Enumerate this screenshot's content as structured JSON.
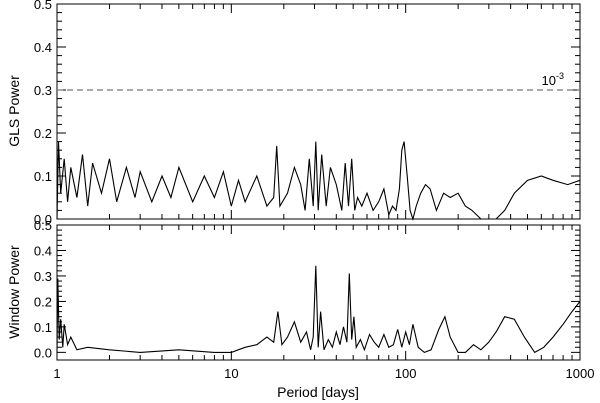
{
  "chart_data": [
    {
      "type": "line",
      "panel": "top",
      "xlabel": "",
      "ylabel": "GLS Power",
      "xscale": "log",
      "xlim": [
        1,
        1000
      ],
      "ylim": [
        0,
        0.5
      ],
      "yticks": [
        "0.0",
        "0.1",
        "0.2",
        "0.3",
        "0.4",
        "0.5"
      ],
      "grid": false,
      "threshold": {
        "value": 0.3,
        "style": "dashed",
        "label_base": "10",
        "label_exp": "-3"
      },
      "series": [
        {
          "name": "",
          "x": [
            1.0,
            1.02,
            1.05,
            1.1,
            1.15,
            1.2,
            1.3,
            1.4,
            1.5,
            1.6,
            1.8,
            2.0,
            2.2,
            2.5,
            2.8,
            3.0,
            3.5,
            4.0,
            4.5,
            5.0,
            6.0,
            7.0,
            8.0,
            9.0,
            10.0,
            11.0,
            12.0,
            14.0,
            16.0,
            17.5,
            18.2,
            19.0,
            21.0,
            23.0,
            25.0,
            26.5,
            28.0,
            29.5,
            30.5,
            31.5,
            33.0,
            35.0,
            37.0,
            40.0,
            43.0,
            45.0,
            47.0,
            49.0,
            51.0,
            53.0,
            56.0,
            60.0,
            65.0,
            70.0,
            75.0,
            80.0,
            84.0,
            88.0,
            92.0,
            95.0,
            98.0,
            102.0,
            106.0,
            110.0,
            115.0,
            122.0,
            130.0,
            138.0,
            150.0,
            165.0,
            180.0,
            200.0,
            220.0,
            240.0,
            270.0,
            300.0,
            330.0,
            370.0,
            420.0,
            500.0,
            600.0,
            700.0,
            850.0,
            1000.0
          ],
          "y": [
            0.0,
            0.18,
            0.06,
            0.14,
            0.04,
            0.12,
            0.05,
            0.15,
            0.03,
            0.13,
            0.06,
            0.14,
            0.04,
            0.12,
            0.05,
            0.11,
            0.04,
            0.1,
            0.05,
            0.12,
            0.04,
            0.1,
            0.05,
            0.11,
            0.03,
            0.09,
            0.04,
            0.1,
            0.03,
            0.05,
            0.17,
            0.03,
            0.06,
            0.12,
            0.08,
            0.02,
            0.14,
            0.03,
            0.18,
            0.02,
            0.15,
            0.03,
            0.12,
            0.08,
            0.02,
            0.13,
            0.03,
            0.14,
            0.02,
            0.05,
            0.03,
            0.06,
            0.02,
            0.04,
            0.07,
            0.01,
            0.03,
            0.02,
            0.07,
            0.16,
            0.18,
            0.1,
            0.02,
            0.0,
            0.03,
            0.06,
            0.08,
            0.07,
            0.02,
            0.06,
            0.05,
            0.06,
            0.03,
            0.02,
            0.0,
            0.0,
            0.0,
            0.02,
            0.06,
            0.09,
            0.1,
            0.09,
            0.08,
            0.09
          ]
        }
      ]
    },
    {
      "type": "line",
      "panel": "bottom",
      "xlabel": "Period [days]",
      "ylabel": "Window Power",
      "xscale": "log",
      "xlim": [
        1,
        1000
      ],
      "ylim": [
        -0.03,
        0.5
      ],
      "xticks": [
        "1",
        "10",
        "100",
        "1000"
      ],
      "yticks": [
        "0.0",
        "0.1",
        "0.2",
        "0.3",
        "0.4",
        "0.5"
      ],
      "grid": false,
      "series": [
        {
          "name": "",
          "x": [
            1.0,
            1.01,
            1.03,
            1.05,
            1.08,
            1.1,
            1.15,
            1.2,
            1.3,
            1.5,
            2.0,
            3.0,
            5.0,
            8.0,
            10.0,
            12.0,
            14.0,
            16.0,
            17.5,
            18.5,
            19.5,
            21.0,
            23.0,
            25.0,
            27.0,
            28.5,
            29.5,
            30.5,
            31.5,
            32.5,
            34.0,
            36.0,
            38.0,
            40.0,
            42.0,
            44.0,
            46.0,
            47.5,
            49.0,
            50.5,
            52.0,
            55.0,
            58.0,
            62.0,
            66.0,
            70.0,
            75.0,
            80.0,
            85.0,
            90.0,
            95.0,
            100.0,
            105.0,
            110.0,
            118.0,
            128.0,
            140.0,
            155.0,
            168.0,
            180.0,
            200.0,
            220.0,
            245.0,
            270.0,
            300.0,
            330.0,
            370.0,
            420.0,
            480.0,
            550.0,
            620.0,
            700.0,
            800.0,
            900.0,
            1000.0
          ],
          "y": [
            0.0,
            0.29,
            0.05,
            0.13,
            0.02,
            0.11,
            0.03,
            0.06,
            0.01,
            0.02,
            0.01,
            0.0,
            0.01,
            0.0,
            0.0,
            0.02,
            0.03,
            0.06,
            0.04,
            0.16,
            0.03,
            0.06,
            0.12,
            0.04,
            0.08,
            0.01,
            0.06,
            0.34,
            0.02,
            0.16,
            0.01,
            0.05,
            0.02,
            0.08,
            0.03,
            0.1,
            0.04,
            0.31,
            0.05,
            0.14,
            0.02,
            0.05,
            0.01,
            0.07,
            0.04,
            0.02,
            0.07,
            0.02,
            0.03,
            0.09,
            0.02,
            0.08,
            0.03,
            0.11,
            0.02,
            0.0,
            0.01,
            0.09,
            0.14,
            0.06,
            0.0,
            0.0,
            0.03,
            0.01,
            0.04,
            0.08,
            0.14,
            0.13,
            0.06,
            0.0,
            0.02,
            0.06,
            0.11,
            0.16,
            0.2
          ]
        }
      ]
    }
  ]
}
